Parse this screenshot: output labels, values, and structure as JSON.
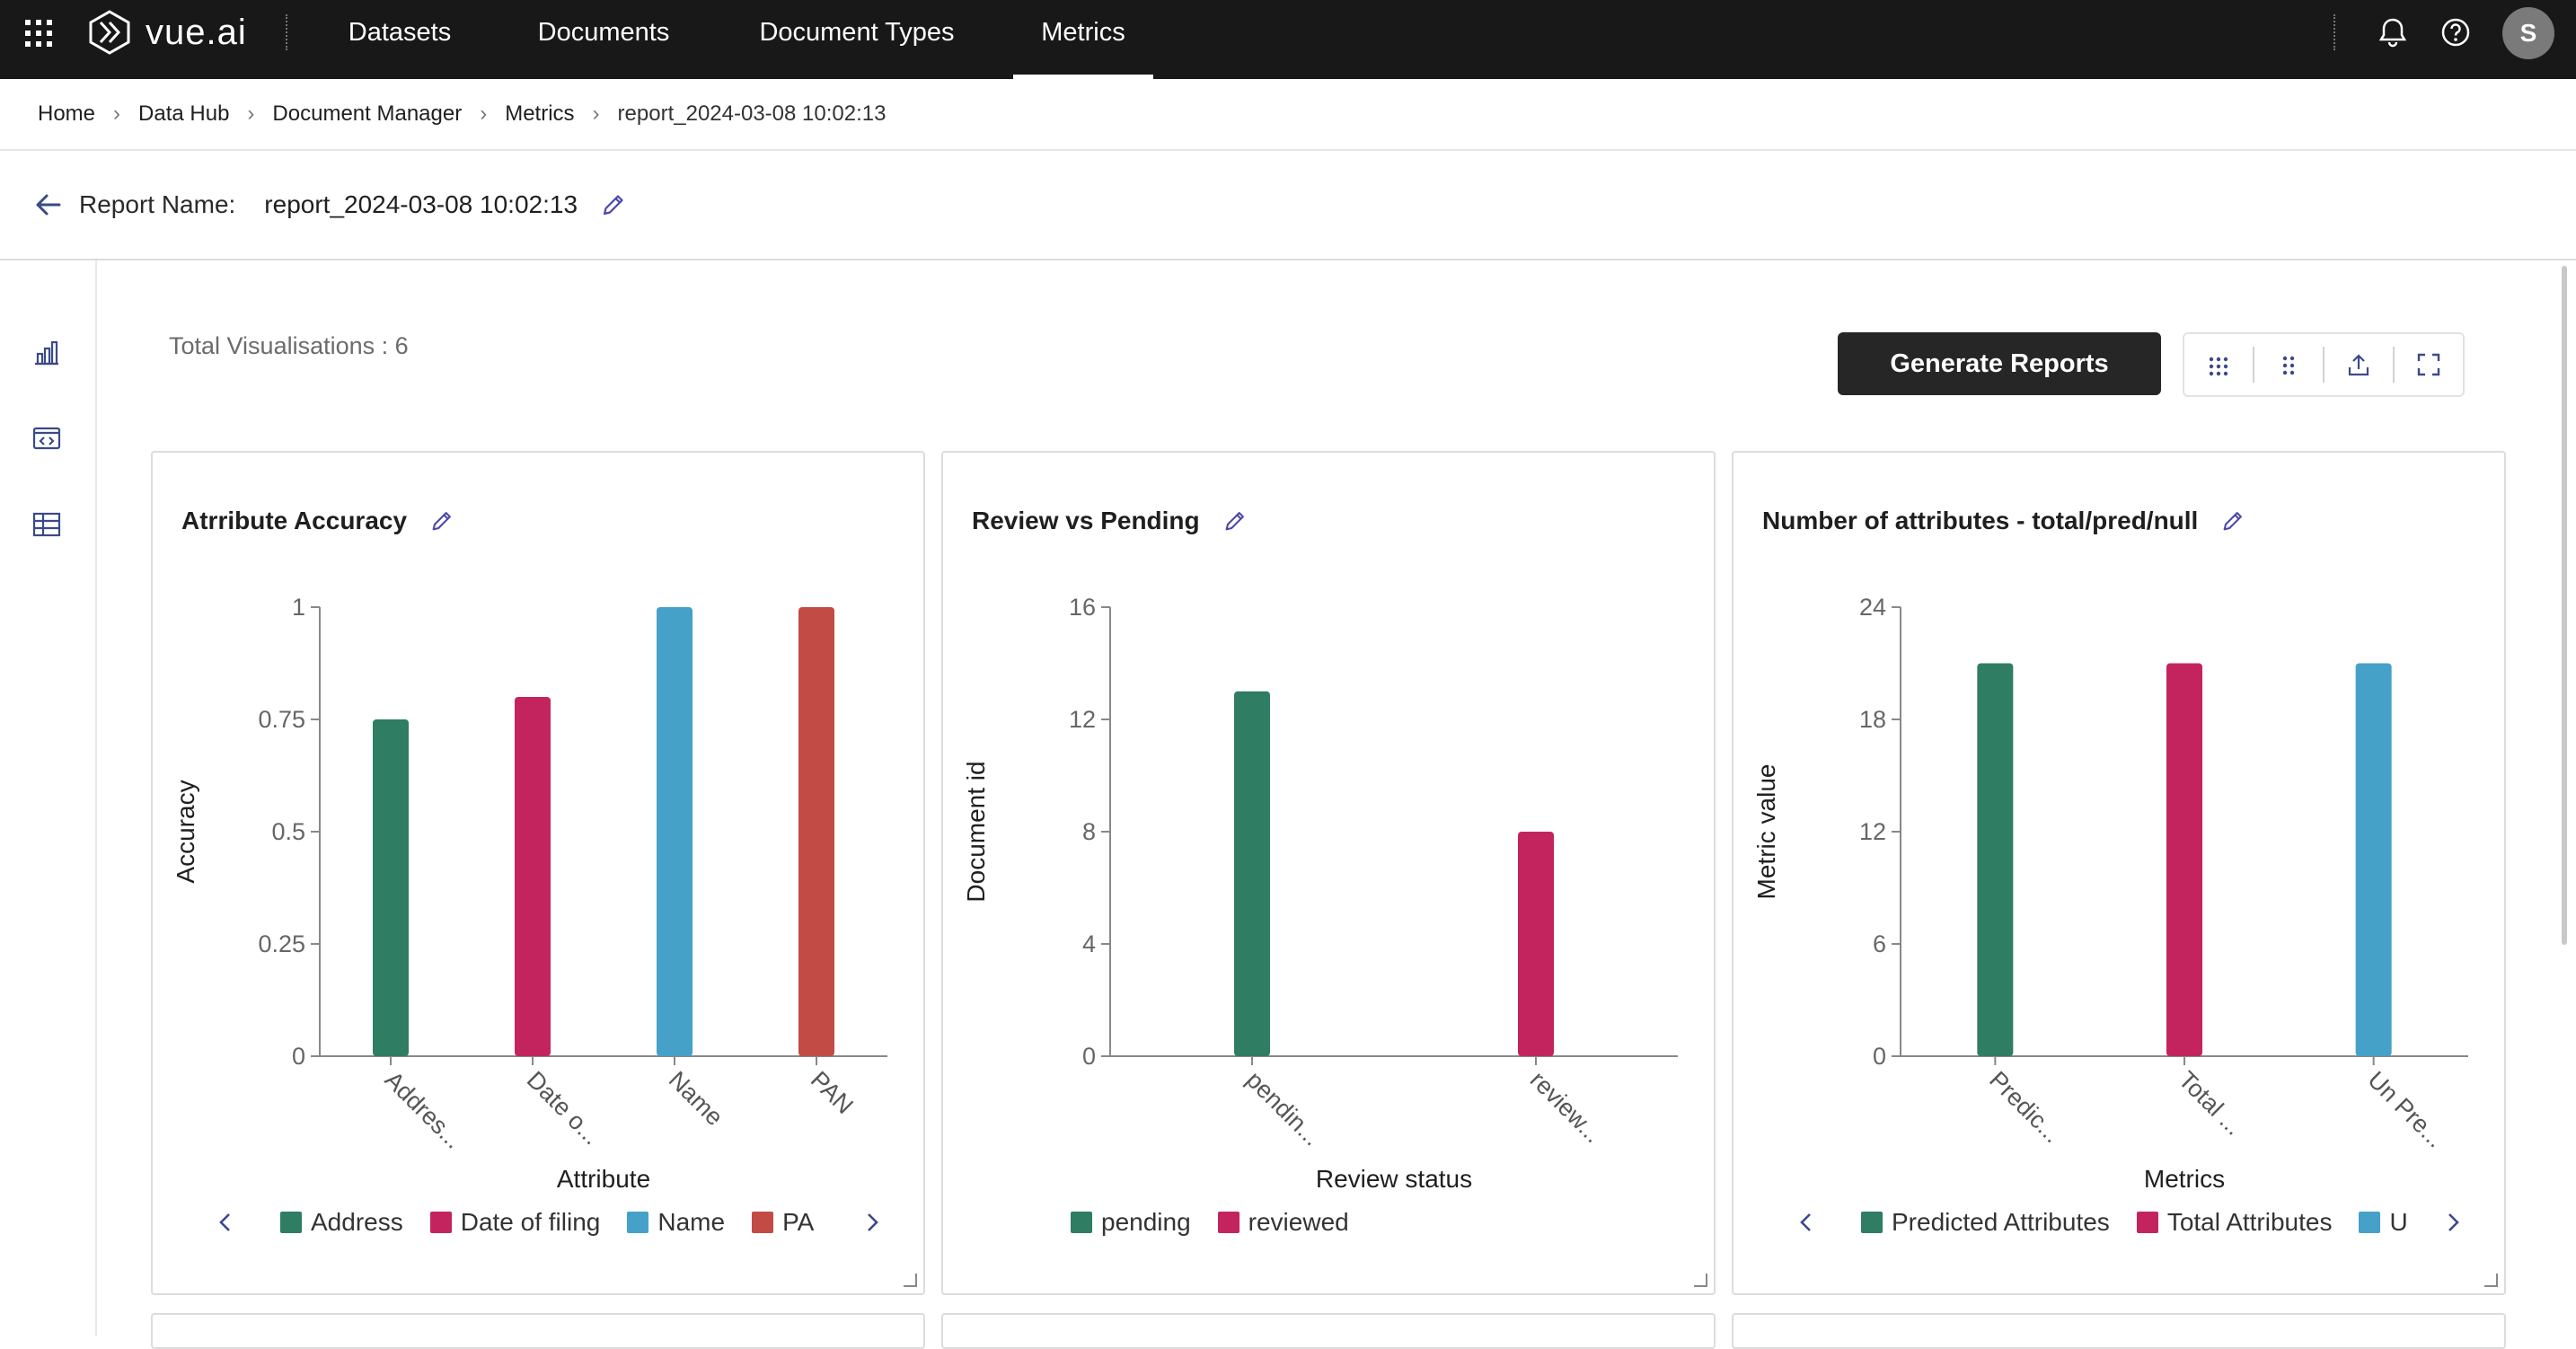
{
  "app": {
    "logo_text": "vue.ai"
  },
  "nav": {
    "items": [
      {
        "label": "Datasets"
      },
      {
        "label": "Documents"
      },
      {
        "label": "Document Types"
      },
      {
        "label": "Metrics"
      }
    ],
    "active": "Metrics",
    "avatar_initial": "S"
  },
  "breadcrumb": [
    "Home",
    "Data Hub",
    "Document Manager",
    "Metrics",
    "report_2024-03-08 10:02:13"
  ],
  "report": {
    "label": "Report Name:",
    "name": "report_2024-03-08 10:02:13"
  },
  "toolbar": {
    "total_visualisations": "Total Visualisations : 6",
    "generate_label": "Generate Reports",
    "icons": [
      "grid-dense-icon",
      "grid-sparse-icon",
      "export-icon",
      "fullscreen-icon"
    ]
  },
  "side_icons": [
    "bar-chart-icon",
    "code-window-icon",
    "table-icon"
  ],
  "colors": {
    "green": "#2f7d62",
    "pink": "#c4245e",
    "blue": "#45a1c8",
    "red": "#c24b45",
    "topbar": "#181818",
    "accent_edit": "#4b46a8"
  },
  "chart_data": [
    {
      "type": "bar",
      "title": "Atrribute Accuracy",
      "categories": [
        "Address",
        "Date of filing",
        "Name",
        "PAN"
      ],
      "tick_labels": [
        "Addres...",
        "Date o...",
        "Name",
        "PAN"
      ],
      "values": [
        0.75,
        0.8,
        1,
        1
      ],
      "colors": [
        "#2f7d62",
        "#c4245e",
        "#45a1c8",
        "#c24b45"
      ],
      "xlabel": "Attribute",
      "ylabel": "Accuracy",
      "ylim": [
        0,
        1
      ],
      "yticks": [
        "0",
        "0.25",
        "0.5",
        "0.75",
        "1"
      ],
      "legend": [
        "Address",
        "Date of filing",
        "Name",
        "PA"
      ],
      "legend_scroll": true
    },
    {
      "type": "bar",
      "title": "Review vs Pending",
      "categories": [
        "pending",
        "reviewed"
      ],
      "tick_labels": [
        "pendin...",
        "review..."
      ],
      "values": [
        13,
        8
      ],
      "colors": [
        "#2f7d62",
        "#c4245e"
      ],
      "xlabel": "Review status",
      "ylabel": "Document id",
      "ylim": [
        0,
        16
      ],
      "yticks": [
        "0",
        "4",
        "8",
        "12",
        "16"
      ],
      "legend": [
        "pending",
        "reviewed"
      ],
      "legend_scroll": false
    },
    {
      "type": "bar",
      "title": "Number of attributes - total/pred/null",
      "categories": [
        "Predicted Attributes",
        "Total Attributes",
        "Un Predicted Attributes"
      ],
      "tick_labels": [
        "Predic...",
        "Total ...",
        "Un Pre..."
      ],
      "values": [
        21,
        21,
        21
      ],
      "colors": [
        "#2f7d62",
        "#c4245e",
        "#45a1c8"
      ],
      "xlabel": "Metrics",
      "ylabel": "Metric value",
      "ylim": [
        0,
        24
      ],
      "yticks": [
        "0",
        "6",
        "12",
        "18",
        "24"
      ],
      "legend": [
        "Predicted Attributes",
        "Total Attributes",
        "U"
      ],
      "legend_scroll": true
    }
  ]
}
